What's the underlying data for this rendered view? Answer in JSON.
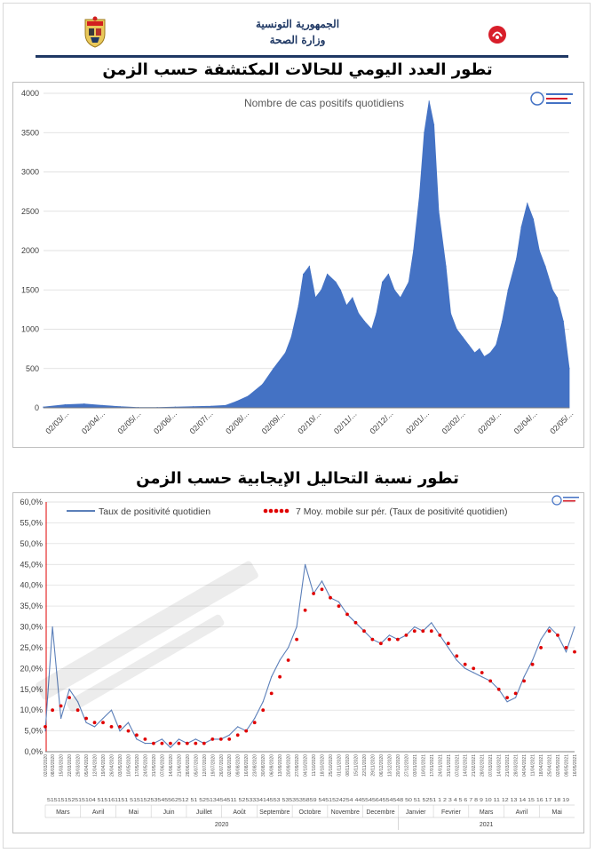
{
  "header": {
    "republic": "الجمهورية التونسية",
    "ministry": "وزارة الصحة"
  },
  "colors": {
    "navy": "#1f3864",
    "area_blue": "#4472c4",
    "line_blue": "#5b7fb9",
    "avg_red": "#e00000",
    "grid": "#d9d9d9"
  },
  "icons": {
    "left": "tunisia-emblem-icon",
    "right": "ministry-logo-icon"
  },
  "chart_data": [
    {
      "type": "area",
      "heading": "تطور العدد اليومي للحالات المكتشفة حسب الزمن",
      "title": "Nombre de cas positifs quotidiens",
      "ylim": [
        0,
        4000
      ],
      "yticks": [
        0,
        500,
        1000,
        1500,
        2000,
        2500,
        3000,
        3500,
        4000
      ],
      "xlim": [
        "2020-03-02",
        "2021-05-15"
      ],
      "xtick_labels": [
        "02/03/...",
        "02/04/...",
        "02/05/...",
        "02/06/...",
        "02/07/...",
        "02/08/...",
        "02/09/...",
        "02/10/...",
        "02/11/...",
        "02/12/...",
        "02/01/...",
        "02/02/...",
        "02/03/...",
        "02/04/...",
        "02/05/..."
      ],
      "series": [
        {
          "x": [
            "2020-03-02",
            "2020-03-20",
            "2020-04-05",
            "2020-04-20",
            "2020-05-05",
            "2020-05-20",
            "2020-06-05",
            "2020-06-20",
            "2020-07-05",
            "2020-07-20",
            "2020-08-01",
            "2020-08-10",
            "2020-08-20",
            "2020-09-01",
            "2020-09-10",
            "2020-09-20",
            "2020-09-25",
            "2020-10-01",
            "2020-10-05",
            "2020-10-10",
            "2020-10-15",
            "2020-10-20",
            "2020-10-25",
            "2020-11-01",
            "2020-11-05",
            "2020-11-10",
            "2020-11-15",
            "2020-11-20",
            "2020-11-25",
            "2020-12-01",
            "2020-12-05",
            "2020-12-10",
            "2020-12-15",
            "2020-12-20",
            "2020-12-25",
            "2021-01-01",
            "2021-01-05",
            "2021-01-10",
            "2021-01-14",
            "2021-01-18",
            "2021-01-22",
            "2021-01-26",
            "2021-02-01",
            "2021-02-05",
            "2021-02-10",
            "2021-02-15",
            "2021-02-20",
            "2021-02-25",
            "2021-03-01",
            "2021-03-05",
            "2021-03-10",
            "2021-03-15",
            "2021-03-20",
            "2021-03-25",
            "2021-04-01",
            "2021-04-05",
            "2021-04-10",
            "2021-04-15",
            "2021-04-20",
            "2021-04-25",
            "2021-05-01",
            "2021-05-05",
            "2021-05-10",
            "2021-05-15"
          ],
          "y": [
            10,
            40,
            50,
            30,
            15,
            5,
            5,
            10,
            15,
            20,
            30,
            80,
            150,
            300,
            500,
            700,
            900,
            1300,
            1700,
            1800,
            1400,
            1500,
            1700,
            1600,
            1500,
            1300,
            1400,
            1200,
            1100,
            1000,
            1200,
            1600,
            1700,
            1500,
            1400,
            1600,
            2000,
            2700,
            3500,
            3900,
            3600,
            2500,
            1800,
            1200,
            1000,
            900,
            800,
            700,
            750,
            650,
            700,
            800,
            1100,
            1500,
            1900,
            2300,
            2600,
            2400,
            2000,
            1800,
            1500,
            1400,
            1100,
            500
          ]
        }
      ]
    },
    {
      "type": "line",
      "heading": "تطور نسبة التحاليل الإيجابية حسب الزمن",
      "ylim": [
        0,
        60
      ],
      "ytick_labels": [
        "0,0%",
        "5,0%",
        "10,0%",
        "15,0%",
        "20,0%",
        "25,0%",
        "30,0%",
        "35,0%",
        "40,0%",
        "45,0%",
        "50,0%",
        "55,0%",
        "60,0%"
      ],
      "legend": [
        "Taux de positivité quotidien",
        "7 Moy. mobile sur pér. (Taux de positivité quotidien)"
      ],
      "months": [
        "Mars",
        "Avril",
        "Mai",
        "Juin",
        "Juillet",
        "Août",
        "Septembre",
        "Octobre",
        "Novembre",
        "Decembre",
        "Janvier",
        "Fevrier",
        "Mars",
        "Avril",
        "Mai"
      ],
      "years": [
        "2020",
        "2021"
      ],
      "x": [
        "2020-03-02",
        "2020-03-08",
        "2020-03-15",
        "2020-03-22",
        "2020-03-29",
        "2020-04-05",
        "2020-04-12",
        "2020-04-19",
        "2020-04-26",
        "2020-05-03",
        "2020-05-10",
        "2020-05-17",
        "2020-05-24",
        "2020-05-31",
        "2020-06-07",
        "2020-06-14",
        "2020-06-21",
        "2020-06-28",
        "2020-07-05",
        "2020-07-12",
        "2020-07-19",
        "2020-07-26",
        "2020-08-02",
        "2020-08-09",
        "2020-08-16",
        "2020-08-23",
        "2020-08-30",
        "2020-09-06",
        "2020-09-13",
        "2020-09-20",
        "2020-09-27",
        "2020-10-04",
        "2020-10-11",
        "2020-10-18",
        "2020-10-25",
        "2020-11-01",
        "2020-11-08",
        "2020-11-15",
        "2020-11-22",
        "2020-11-29",
        "2020-12-06",
        "2020-12-13",
        "2020-12-20",
        "2020-12-27",
        "2021-01-03",
        "2021-01-10",
        "2021-01-17",
        "2021-01-24",
        "2021-01-31",
        "2021-02-07",
        "2021-02-14",
        "2021-02-21",
        "2021-02-28",
        "2021-03-07",
        "2021-03-14",
        "2021-03-21",
        "2021-03-28",
        "2021-04-04",
        "2021-04-11",
        "2021-04-18",
        "2021-04-25",
        "2021-05-02",
        "2021-05-09",
        "2021-05-16"
      ],
      "series": [
        {
          "name": "Taux de positivité quotidien",
          "values": [
            5,
            30,
            8,
            15,
            12,
            7,
            6,
            8,
            10,
            5,
            7,
            3,
            2,
            2,
            3,
            1,
            3,
            2,
            3,
            2,
            3,
            3,
            4,
            6,
            5,
            8,
            12,
            18,
            22,
            25,
            30,
            45,
            38,
            41,
            37,
            36,
            33,
            31,
            29,
            27,
            26,
            28,
            27,
            28,
            30,
            29,
            31,
            28,
            25,
            22,
            20,
            19,
            18,
            17,
            15,
            12,
            13,
            18,
            22,
            27,
            30,
            28,
            24,
            30
          ],
          "ylabel": ""
        },
        {
          "name": "7 Moy. mobile sur pér. (Taux de positivité quotidien)",
          "values": [
            6,
            10,
            11,
            13,
            10,
            8,
            7,
            7,
            6,
            6,
            5,
            4,
            3,
            2,
            2,
            2,
            2,
            2,
            2,
            2,
            3,
            3,
            3,
            4,
            5,
            7,
            10,
            14,
            18,
            22,
            27,
            34,
            38,
            39,
            37,
            35,
            33,
            31,
            29,
            27,
            26,
            27,
            27,
            28,
            29,
            29,
            29,
            28,
            26,
            23,
            21,
            20,
            19,
            17,
            15,
            13,
            14,
            17,
            21,
            25,
            29,
            28,
            25,
            24
          ]
        }
      ],
      "annotation_row": "51515152515104 515161151 51515253545562512 51 52513454511 525333414553 5353535859 5451524254 44554564554548 50 51 5251 1 2 3 4 5 6 7 8 9 10 11 12 13 14 15 16 17 18 19"
    }
  ]
}
